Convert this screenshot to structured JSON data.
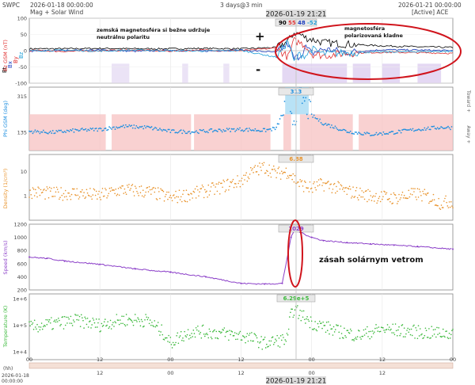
{
  "header": {
    "brand": "SWPC",
    "subtitle": "Mag + Solar Wind",
    "start": "2026-01-18 00:00:00",
    "span": "3 days@3 min",
    "end": "2026-01-21 00:00:00",
    "source": "[Active] ACE",
    "cursor_time": "2026-01-19 21:21",
    "origin_label": "(hh)",
    "origin_date": "2026-01-18",
    "origin_time": "00:00:00"
  },
  "colors": {
    "bt": "#000000",
    "bx": "#1f3fbf",
    "by": "#e03030",
    "bz": "#1f9fd8",
    "phi": "#1f8fe0",
    "density": "#e8922a",
    "speed": "#8b3fc8",
    "temperature": "#3ab83a",
    "annotation": "#d0141c",
    "phi_band": "#f7c6c6",
    "gap": "#d8c8ee",
    "cursor_box": "#dcdcdc"
  },
  "chart_data": [
    {
      "type": "line",
      "panel": "mag",
      "ylabel": "Bz  GSM (nT)",
      "legend": [
        "Bt",
        "Bx",
        "By",
        "Bz"
      ],
      "ylim": [
        -100,
        100
      ],
      "yticks": [
        -100,
        -50,
        0,
        50,
        100
      ],
      "readout": [
        "90",
        "55",
        "48",
        "-52"
      ],
      "x": [
        0,
        6,
        12,
        18,
        24,
        30,
        36,
        42,
        44,
        45,
        46,
        47,
        48,
        50,
        54,
        60,
        66,
        72
      ],
      "series": [
        {
          "name": "Bt",
          "values": [
            6,
            6,
            7,
            6,
            6,
            7,
            6,
            10,
            30,
            55,
            50,
            40,
            35,
            25,
            20,
            15,
            12,
            10
          ]
        },
        {
          "name": "Bx",
          "values": [
            -2,
            1,
            2,
            -2,
            1,
            -1,
            2,
            -5,
            20,
            -25,
            -15,
            10,
            -8,
            5,
            -5,
            3,
            2,
            0
          ]
        },
        {
          "name": "By",
          "values": [
            1,
            -2,
            0,
            2,
            -1,
            2,
            0,
            8,
            -20,
            30,
            25,
            15,
            -10,
            -15,
            -8,
            -5,
            -6,
            -8
          ]
        },
        {
          "name": "Bz",
          "values": [
            0,
            1,
            -1,
            2,
            0,
            -1,
            1,
            -20,
            30,
            -35,
            -10,
            -15,
            5,
            -10,
            -6,
            -4,
            -3,
            -2
          ]
        }
      ]
    },
    {
      "type": "scatter",
      "panel": "phi",
      "ylabel": "Phi GSM (deg)",
      "right_labels": [
        "Toward +",
        "Away +"
      ],
      "ylim": [
        45,
        360
      ],
      "yticks": [
        135,
        315
      ],
      "readout": "313",
      "x": [
        0,
        4,
        8,
        12,
        16,
        20,
        24,
        28,
        32,
        36,
        40,
        42,
        44,
        45,
        46,
        48,
        50,
        54,
        58,
        62,
        66,
        70,
        72
      ],
      "values": [
        140,
        135,
        145,
        150,
        165,
        160,
        140,
        138,
        145,
        150,
        145,
        155,
        300,
        200,
        320,
        220,
        180,
        140,
        125,
        135,
        150,
        160,
        158
      ]
    },
    {
      "type": "scatter",
      "panel": "density",
      "ylabel": "Density (1/cm³)",
      "yscale": "log",
      "ylim": [
        0.1,
        50
      ],
      "ytick_labels": [
        "10",
        "1"
      ],
      "readout": "6.88",
      "x": [
        0,
        4,
        8,
        12,
        16,
        20,
        24,
        28,
        32,
        36,
        40,
        42,
        44,
        45,
        46,
        48,
        50,
        54,
        58,
        62,
        66,
        70,
        72
      ],
      "values": [
        1.5,
        1.2,
        1.3,
        1.0,
        1.8,
        1.5,
        0.8,
        1.2,
        2.0,
        4.0,
        15,
        8,
        10,
        5,
        3,
        2,
        3,
        1.5,
        1.0,
        0.8,
        1.2,
        0.5,
        0.6
      ]
    },
    {
      "type": "line",
      "panel": "speed",
      "ylabel": "Speed (km/s)",
      "ylim": [
        200,
        1200
      ],
      "yticks": [
        200,
        400,
        600,
        800,
        1000,
        1200
      ],
      "readout": "1029",
      "x": [
        0,
        3,
        6,
        12,
        18,
        24,
        30,
        36,
        40,
        43,
        44.5,
        45,
        46,
        48,
        50,
        54,
        58,
        62,
        66,
        72
      ],
      "values": [
        700,
        680,
        640,
        590,
        520,
        470,
        400,
        300,
        290,
        300,
        1000,
        1100,
        1080,
        1000,
        950,
        920,
        900,
        880,
        860,
        820
      ]
    },
    {
      "type": "scatter",
      "panel": "temperature",
      "ylabel": "Temperature (K)",
      "yscale": "log",
      "ylim": [
        5000,
        1500000
      ],
      "ytick_labels": [
        "1e+6",
        "1e+5",
        "1e+4"
      ],
      "readout": "6.29e+5",
      "x": [
        0,
        4,
        8,
        12,
        16,
        20,
        22,
        24,
        28,
        32,
        36,
        40,
        44,
        45,
        46,
        48,
        52,
        56,
        60,
        64,
        68,
        72
      ],
      "values": [
        80000,
        110000,
        150000,
        100000,
        160000,
        150000,
        70000,
        20000,
        60000,
        50000,
        40000,
        20000,
        30000,
        400000,
        250000,
        120000,
        60000,
        40000,
        70000,
        60000,
        50000,
        50000
      ]
    }
  ],
  "xaxis": {
    "x_range_hours": [
      0,
      72
    ],
    "top_ticks": [
      {
        "x": 0,
        "label": "00"
      },
      {
        "x": 12,
        "label": "12"
      },
      {
        "x": 24,
        "label": "00"
      },
      {
        "x": 36,
        "label": "12"
      },
      {
        "x": 48,
        "label": "00"
      },
      {
        "x": 60,
        "label": "12"
      },
      {
        "x": 72,
        "label": "00"
      }
    ],
    "bottom_ticks": [
      {
        "x": 12,
        "label": "12"
      },
      {
        "x": 24,
        "label": "00"
      },
      {
        "x": 36,
        "label": "12"
      },
      {
        "x": 48,
        "label": "00"
      },
      {
        "x": 60,
        "label": "12"
      }
    ],
    "cursor_hour": 45.35
  },
  "annotations": {
    "left_note_line1": "zemská magnetosféra si bežne udržuje",
    "left_note_line2": "neutrálnu polaritu",
    "right_note_line1": "magnetosféra",
    "right_note_line2": "polarizovaná kladne",
    "plus": "+",
    "minus": "-",
    "impact": "zásah solárnym vetrom"
  }
}
